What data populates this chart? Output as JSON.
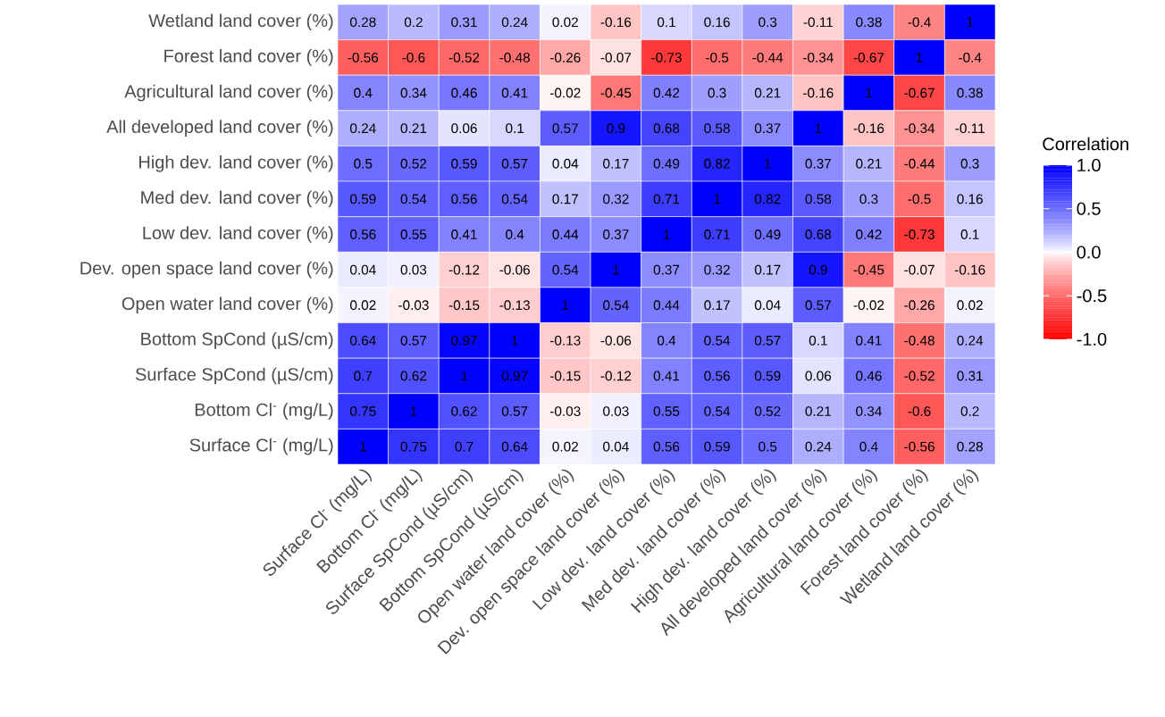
{
  "chart_data": {
    "type": "heatmap",
    "clabel": "Correlation",
    "categories": [
      "Surface Cl$^{-}$ (mg/L)",
      "Bottom Cl$^{-}$ (mg/L)",
      "Surface SpCond (µS/cm)",
      "Bottom SpCond (µS/cm)",
      "Open water land cover (%)",
      "Dev. open space land cover (%)",
      "Low dev. land cover (%)",
      "Med dev. land cover (%)",
      "High dev. land cover (%)",
      "All developed land cover (%)",
      "Agricultural land cover (%)",
      "Forest land cover (%)",
      "Wetland land cover (%)"
    ],
    "y_categories": [
      "Wetland land cover (%)",
      "Forest land cover (%)",
      "Agricultural land cover (%)",
      "All developed land cover (%)",
      "High dev. land cover (%)",
      "Med dev. land cover (%)",
      "Low dev. land cover (%)",
      "Dev. open space land cover (%)",
      "Open water land cover (%)",
      "Bottom SpCond (µS/cm)",
      "Surface SpCond (µS/cm)",
      "Bottom Cl$^{-}$ (mg/L)",
      "Surface Cl$^{-}$ (mg/L)"
    ],
    "cells": [
      [
        0.28,
        0.2,
        0.31,
        0.24,
        0.02,
        -0.16,
        0.1,
        0.16,
        0.3,
        -0.11,
        0.38,
        -0.4,
        1
      ],
      [
        -0.56,
        -0.6,
        -0.52,
        -0.48,
        -0.26,
        -0.07,
        -0.73,
        -0.5,
        -0.44,
        -0.34,
        -0.67,
        1,
        -0.4
      ],
      [
        0.4,
        0.34,
        0.46,
        0.41,
        -0.02,
        -0.45,
        0.42,
        0.3,
        0.21,
        -0.16,
        1,
        -0.67,
        0.38
      ],
      [
        0.24,
        0.21,
        0.06,
        0.1,
        0.57,
        0.9,
        0.68,
        0.58,
        0.37,
        1,
        -0.16,
        -0.34,
        -0.11
      ],
      [
        0.5,
        0.52,
        0.59,
        0.57,
        0.04,
        0.17,
        0.49,
        0.82,
        1,
        0.37,
        0.21,
        -0.44,
        0.3
      ],
      [
        0.59,
        0.54,
        0.56,
        0.54,
        0.17,
        0.32,
        0.71,
        1,
        0.82,
        0.58,
        0.3,
        -0.5,
        0.16
      ],
      [
        0.56,
        0.55,
        0.41,
        0.4,
        0.44,
        0.37,
        1,
        0.71,
        0.49,
        0.68,
        0.42,
        -0.73,
        0.1
      ],
      [
        0.04,
        0.03,
        -0.12,
        -0.06,
        0.54,
        1,
        0.37,
        0.32,
        0.17,
        0.9,
        -0.45,
        -0.07,
        -0.16
      ],
      [
        0.02,
        -0.03,
        -0.15,
        -0.13,
        1,
        0.54,
        0.44,
        0.17,
        0.04,
        0.57,
        -0.02,
        -0.26,
        0.02
      ],
      [
        0.64,
        0.57,
        0.97,
        1,
        -0.13,
        -0.06,
        0.4,
        0.54,
        0.57,
        0.1,
        0.41,
        -0.48,
        0.24
      ],
      [
        0.7,
        0.62,
        1,
        0.97,
        -0.15,
        -0.12,
        0.41,
        0.56,
        0.59,
        0.06,
        0.46,
        -0.52,
        0.31
      ],
      [
        0.75,
        1,
        0.62,
        0.57,
        -0.03,
        0.03,
        0.55,
        0.54,
        0.52,
        0.21,
        0.34,
        -0.6,
        0.2
      ],
      [
        1,
        0.75,
        0.7,
        0.64,
        0.02,
        0.04,
        0.56,
        0.59,
        0.5,
        0.24,
        0.4,
        -0.56,
        0.28
      ]
    ],
    "data_labels": true,
    "clim": [
      -1,
      1
    ],
    "cticks": [
      {
        "value": -1,
        "label": "-1.0"
      },
      {
        "value": -0.5,
        "label": "-0.5"
      },
      {
        "value": 0,
        "label": "0.0"
      },
      {
        "value": 0.5,
        "label": "0.5"
      },
      {
        "value": 1,
        "label": "1.0"
      }
    ]
  }
}
